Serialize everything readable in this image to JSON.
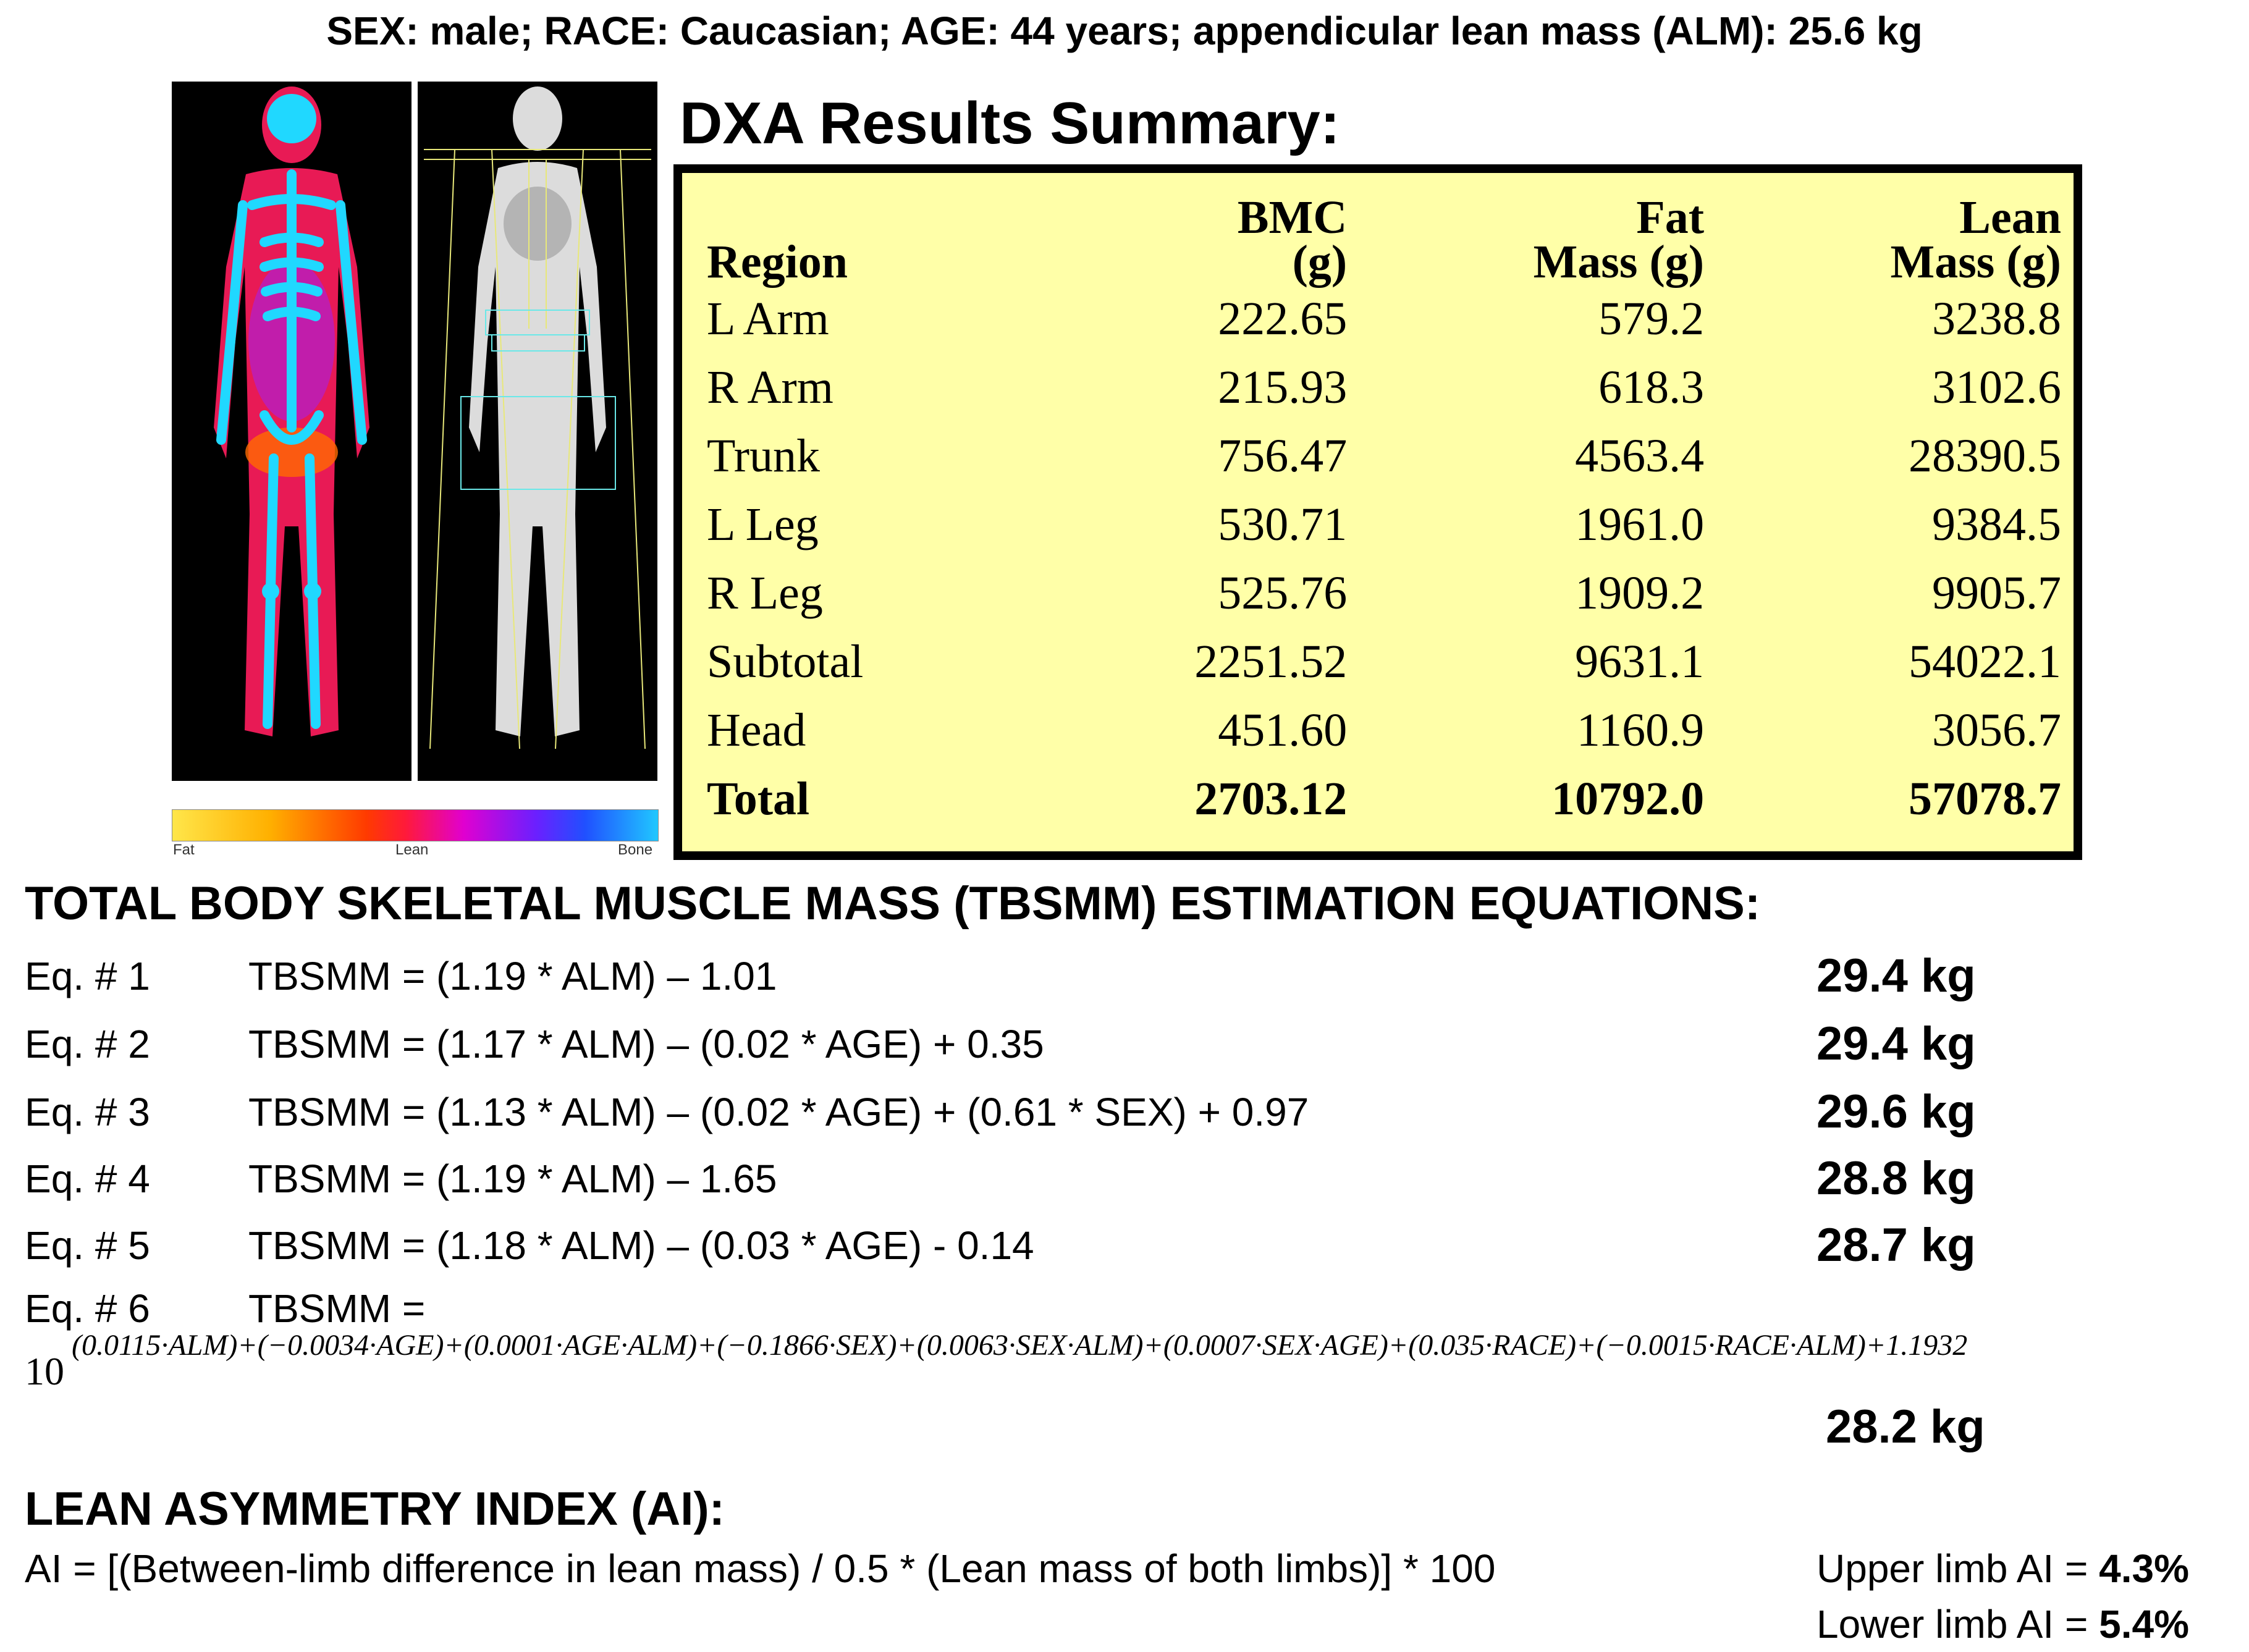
{
  "header": {
    "text": "SEX: male; RACE: Caucasian; AGE: 44 years; appendicular lean mass (ALM): 25.6 kg"
  },
  "scan": {
    "scale_labels": {
      "fat": "Fat",
      "lean": "Lean",
      "bone": "Bone"
    },
    "colors": {
      "fat": "#ffe64a",
      "lean": "#ff1a3a",
      "bone": "#20c8ff"
    }
  },
  "dxa": {
    "title": "DXA Results Summary:",
    "columns": {
      "region": "Region",
      "bmc": [
        "BMC",
        "(g)"
      ],
      "fat": [
        "Fat",
        "Mass (g)"
      ],
      "lean": [
        "Lean",
        "Mass (g)"
      ]
    },
    "rows": [
      {
        "region": "L Arm",
        "bmc": "222.65",
        "fat": "579.2",
        "lean": "3238.8"
      },
      {
        "region": "R Arm",
        "bmc": "215.93",
        "fat": "618.3",
        "lean": "3102.6"
      },
      {
        "region": "Trunk",
        "bmc": "756.47",
        "fat": "4563.4",
        "lean": "28390.5"
      },
      {
        "region": "L Leg",
        "bmc": "530.71",
        "fat": "1961.0",
        "lean": "9384.5"
      },
      {
        "region": "R Leg",
        "bmc": "525.76",
        "fat": "1909.2",
        "lean": "9905.7"
      },
      {
        "region": "Subtotal",
        "bmc": "2251.52",
        "fat": "9631.1",
        "lean": "54022.1"
      },
      {
        "region": "Head",
        "bmc": "451.60",
        "fat": "1160.9",
        "lean": "3056.7"
      },
      {
        "region": "Total",
        "bmc": "2703.12",
        "fat": "10792.0",
        "lean": "57078.7"
      }
    ],
    "table_bg": "#ffffa8"
  },
  "tbsmm": {
    "title": "TOTAL BODY SKELETAL MUSCLE MASS (TBSMM) ESTIMATION EQUATIONS:",
    "equations": [
      {
        "label": "Eq. # 1",
        "formula": "TBSMM = (1.19 * ALM) – 1.01",
        "result": "29.4 kg"
      },
      {
        "label": "Eq. # 2",
        "formula": "TBSMM = (1.17 * ALM) – (0.02 * AGE) + 0.35",
        "result": "29.4 kg"
      },
      {
        "label": "Eq. # 3",
        "formula": "TBSMM = (1.13 * ALM) – (0.02 * AGE) + (0.61 * SEX) + 0.97",
        "result": "29.6 kg"
      },
      {
        "label": "Eq. # 4",
        "formula": "TBSMM = (1.19 * ALM) – 1.65",
        "result": "28.8 kg"
      },
      {
        "label": "Eq. # 5",
        "formula": "TBSMM = (1.18 * ALM) – (0.03 * AGE) - 0.14",
        "result": "28.7 kg"
      }
    ],
    "eq6": {
      "label": "Eq. # 6",
      "formula": "TBSMM =",
      "base": "10",
      "exponent": "(0.0115·ALM)+(−0.0034·AGE)+(0.0001·AGE·ALM)+(−0.1866·SEX)+(0.0063·SEX·ALM)+(0.0007·SEX·AGE)+(0.035·RACE)+(−0.0015·RACE·ALM)+1.1932",
      "result": "28.2 kg"
    }
  },
  "ai": {
    "title": "LEAN ASYMMETRY INDEX (AI):",
    "formula": "AI = [(Between-limb difference in lean mass) / 0.5 * (Lean mass of both limbs)] * 100",
    "upper": {
      "label": "Upper limb AI = ",
      "value": "4.3%"
    },
    "lower": {
      "label": "Lower limb AI = ",
      "value": "5.4%"
    }
  }
}
